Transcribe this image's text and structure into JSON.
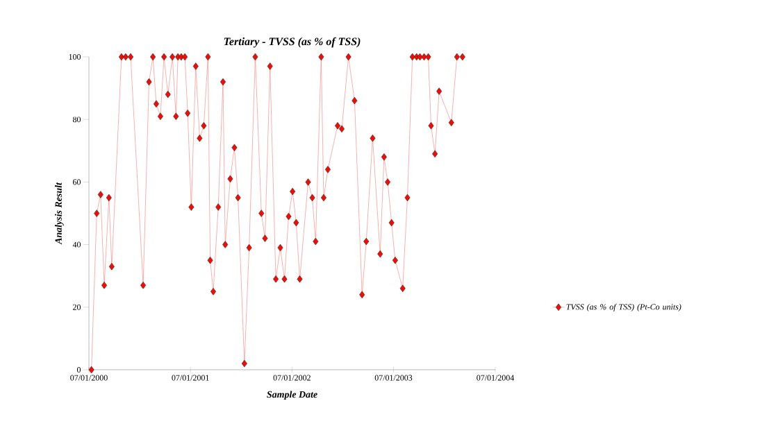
{
  "chart_data": {
    "type": "line",
    "title": "Tertiary  - TVSS (as % of TSS)",
    "xlabel": "Sample Date",
    "ylabel": "Analysis Result",
    "x": [
      "2000-07-10",
      "2000-07-29",
      "2000-08-12",
      "2000-08-25",
      "2000-09-11",
      "2000-09-21",
      "2000-10-26",
      "2000-11-10",
      "2000-11-28",
      "2001-01-12",
      "2001-02-02",
      "2001-02-16",
      "2001-02-28",
      "2001-03-15",
      "2001-03-28",
      "2001-04-11",
      "2001-04-27",
      "2001-05-10",
      "2001-05-17",
      "2001-05-29",
      "2001-06-11",
      "2001-06-21",
      "2001-07-04",
      "2001-07-20",
      "2001-08-03",
      "2001-08-18",
      "2001-09-02",
      "2001-09-10",
      "2001-09-21",
      "2001-10-09",
      "2001-10-26",
      "2001-11-03",
      "2001-11-21",
      "2001-12-06",
      "2001-12-19",
      "2002-01-11",
      "2002-01-28",
      "2002-02-19",
      "2002-03-13",
      "2002-03-26",
      "2002-04-13",
      "2002-05-04",
      "2002-05-20",
      "2002-06-04",
      "2002-06-19",
      "2002-07-03",
      "2002-07-16",
      "2002-07-29",
      "2002-08-28",
      "2002-09-12",
      "2002-09-24",
      "2002-10-14",
      "2002-10-23",
      "2002-11-07",
      "2002-12-12",
      "2002-12-27",
      "2003-01-20",
      "2003-02-11",
      "2003-03-10",
      "2003-03-25",
      "2003-04-17",
      "2003-05-14",
      "2003-05-28",
      "2003-06-10",
      "2003-06-24",
      "2003-07-07",
      "2003-08-03",
      "2003-08-20",
      "2003-09-07",
      "2003-09-22",
      "2003-10-04",
      "2003-10-19",
      "2003-11-03",
      "2003-11-13",
      "2003-11-27",
      "2003-12-12",
      "2004-01-25",
      "2004-02-14",
      "2004-03-05"
    ],
    "series": [
      {
        "name": "TVSS (as % of TSS) (Pt-Co units)",
        "color": "#e3120b",
        "values": [
          0,
          50,
          56,
          27,
          55,
          33,
          100,
          100,
          100,
          27,
          92,
          100,
          85,
          81,
          100,
          88,
          100,
          81,
          100,
          100,
          100,
          82,
          52,
          97,
          74,
          78,
          100,
          35,
          25,
          52,
          92,
          40,
          61,
          71,
          55,
          2,
          39,
          100,
          50,
          42,
          97,
          29,
          39,
          29,
          49,
          57,
          47,
          29,
          60,
          55,
          41,
          100,
          55,
          64,
          78,
          77,
          100,
          86,
          24,
          41,
          74,
          37,
          68,
          60,
          47,
          35,
          26,
          55,
          100,
          100,
          100,
          100,
          100,
          78,
          69,
          89,
          79,
          100,
          100
        ]
      }
    ],
    "xlim": [
      "2000-07-01",
      "2004-07-01"
    ],
    "xticks": [
      {
        "value": "2000-07-01",
        "label": "07/01/2000"
      },
      {
        "value": "2001-07-01",
        "label": "07/01/2001"
      },
      {
        "value": "2002-07-01",
        "label": "07/01/2002"
      },
      {
        "value": "2003-07-01",
        "label": "07/01/2003"
      },
      {
        "value": "2004-07-01",
        "label": "07/01/2004"
      }
    ],
    "ylim": [
      0,
      100
    ],
    "yticks": [
      0,
      20,
      40,
      60,
      80,
      100
    ],
    "marker": "diamond",
    "line_style": "solid",
    "grid": false,
    "legend": "right"
  }
}
